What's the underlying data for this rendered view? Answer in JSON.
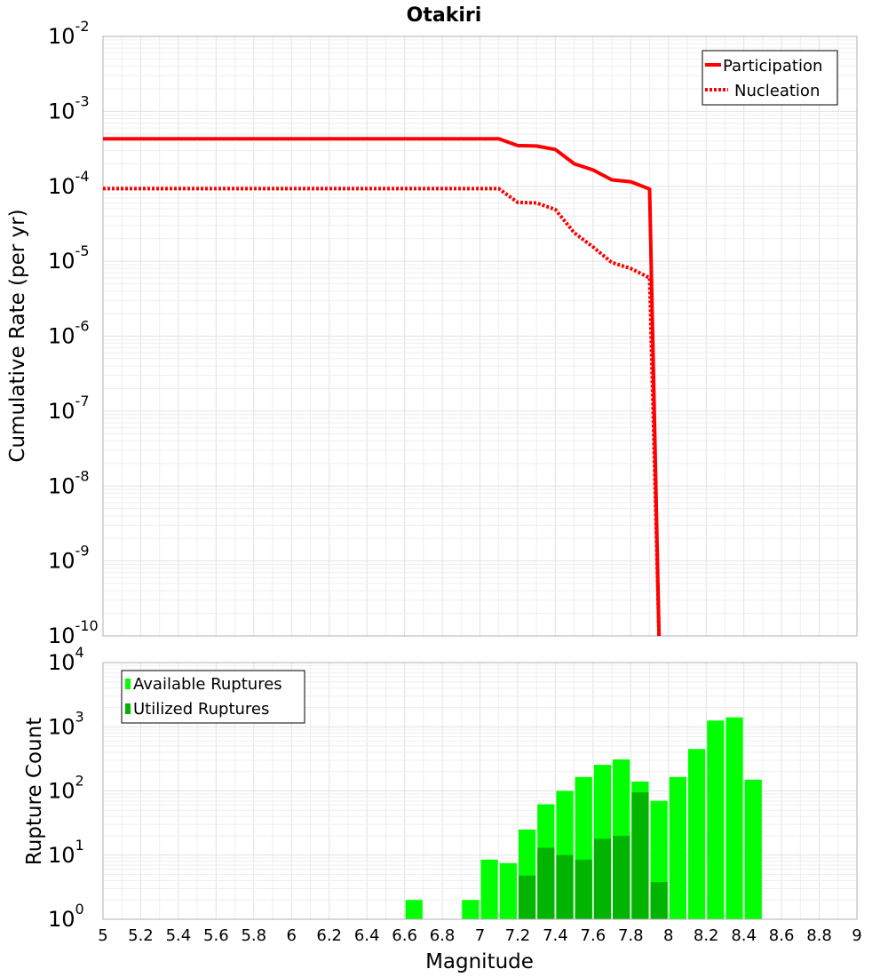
{
  "title": "Otakiri",
  "colors": {
    "participation": "#ff0000",
    "nucleation": "#ff0000",
    "available": "#00ff00",
    "utilized": "#00b400"
  },
  "chart_data": [
    {
      "type": "line",
      "title": "Otakiri",
      "ylabel": "Cumulative Rate (per yr)",
      "xlabel": "",
      "yscale": "log",
      "xlim": [
        5,
        9
      ],
      "ylim_exp": [
        -10,
        -2
      ],
      "y_tick_exponents": [
        -10,
        -9,
        -8,
        -7,
        -6,
        -5,
        -4,
        -3,
        -2
      ],
      "legend": {
        "position": "top-right",
        "entries": [
          "Participation",
          "Nucleation"
        ]
      },
      "series": [
        {
          "name": "Participation",
          "style": "solid",
          "x": [
            5.0,
            7.1,
            7.2,
            7.3,
            7.4,
            7.5,
            7.6,
            7.7,
            7.8,
            7.9,
            7.95
          ],
          "y": [
            0.00043,
            0.00043,
            0.00035,
            0.000345,
            0.00031,
            0.0002,
            0.000165,
            0.000122,
            0.000115,
            9.2e-05,
            1e-10
          ]
        },
        {
          "name": "Nucleation",
          "style": "dotted",
          "x": [
            5.0,
            7.1,
            7.2,
            7.3,
            7.4,
            7.5,
            7.6,
            7.7,
            7.8,
            7.9,
            7.95
          ],
          "y": [
            9.3e-05,
            9.3e-05,
            6.1e-05,
            6e-05,
            4.9e-05,
            2.4e-05,
            1.55e-05,
            9.6e-06,
            8e-06,
            6e-06,
            1e-10
          ]
        }
      ]
    },
    {
      "type": "bar",
      "ylabel": "Rupture Count",
      "xlabel": "Magnitude",
      "yscale": "log",
      "xlim": [
        5,
        9
      ],
      "ylim_exp": [
        0,
        4
      ],
      "y_tick_exponents": [
        0,
        1,
        2,
        3,
        4
      ],
      "x_ticks": [
        "5",
        "5.2",
        "5.4",
        "5.6",
        "5.8",
        "6",
        "6.2",
        "6.4",
        "6.6",
        "6.8",
        "7",
        "7.2",
        "7.4",
        "7.6",
        "7.8",
        "8",
        "8.2",
        "8.4",
        "8.6",
        "8.8",
        "9"
      ],
      "bin_width": 0.1,
      "legend": {
        "position": "top-left",
        "entries": [
          "Available Ruptures",
          "Utilized Ruptures"
        ]
      },
      "series": [
        {
          "name": "Available Ruptures",
          "centers": [
            6.65,
            6.85,
            6.95,
            7.05,
            7.15,
            7.25,
            7.35,
            7.45,
            7.55,
            7.65,
            7.75,
            7.85,
            7.95,
            8.05,
            8.15,
            8.25,
            8.35,
            8.45
          ],
          "values": [
            2,
            1,
            2,
            8.5,
            7.5,
            25,
            62,
            100,
            165,
            255,
            310,
            140,
            70,
            165,
            450,
            1250,
            1400,
            150
          ]
        },
        {
          "name": "Utilized Ruptures",
          "centers": [
            7.15,
            7.25,
            7.35,
            7.45,
            7.55,
            7.65,
            7.75,
            7.85,
            7.95
          ],
          "values": [
            1,
            4.8,
            13,
            10,
            8.5,
            18,
            20,
            95,
            3.8
          ]
        }
      ]
    }
  ]
}
